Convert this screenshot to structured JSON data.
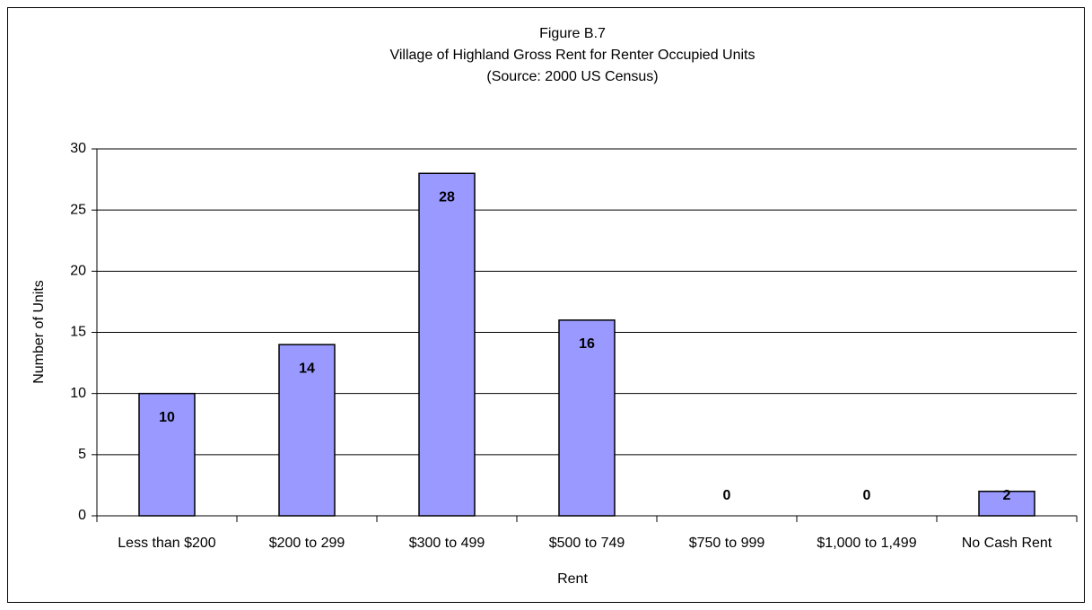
{
  "chart_data": {
    "type": "bar",
    "title": [
      "Figure B.7",
      "Village of Highland Gross Rent for Renter Occupied Units",
      "(Source:  2000 US Census)"
    ],
    "x_label": "Rent",
    "y_label": "Number of Units",
    "categories": [
      "Less than $200",
      "$200 to 299",
      "$300 to 499",
      "$500 to 749",
      "$750 to 999",
      "$1,000 to 1,499",
      "No Cash Rent"
    ],
    "values": [
      10,
      14,
      28,
      16,
      0,
      0,
      2
    ],
    "color": "#9999ff",
    "ylim": [
      0,
      30
    ],
    "yticks": [
      0,
      5,
      10,
      15,
      20,
      25,
      30
    ],
    "grid": true
  }
}
